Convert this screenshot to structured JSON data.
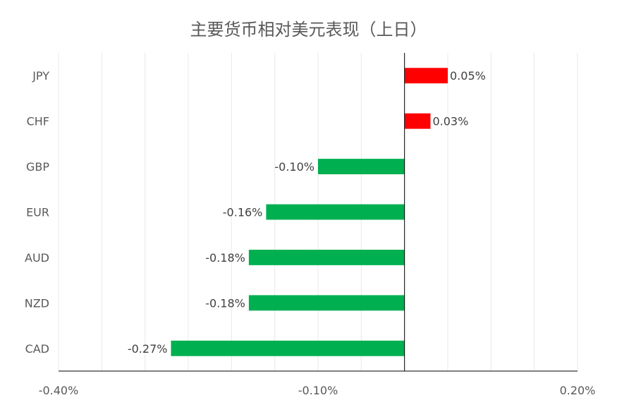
{
  "chart_data": {
    "type": "bar",
    "orientation": "horizontal",
    "title": "主要货币相对美元表现（上日）",
    "categories": [
      "JPY",
      "CHF",
      "GBP",
      "EUR",
      "AUD",
      "NZD",
      "CAD"
    ],
    "values": [
      0.05,
      0.03,
      -0.1,
      -0.16,
      -0.18,
      -0.18,
      -0.27
    ],
    "value_labels": [
      "0.05%",
      "0.03%",
      "-0.10%",
      "-0.16%",
      "-0.18%",
      "-0.18%",
      "-0.27%"
    ],
    "xlim": [
      -0.4,
      0.2
    ],
    "x_tick_labels": [
      "-0.40%",
      "-0.10%",
      "0.20%"
    ],
    "grid": true,
    "legend": "none",
    "colors": {
      "positive": "#ff0000",
      "negative": "#00b050",
      "grid": "#e8e8e8",
      "axis": "#000000"
    }
  }
}
